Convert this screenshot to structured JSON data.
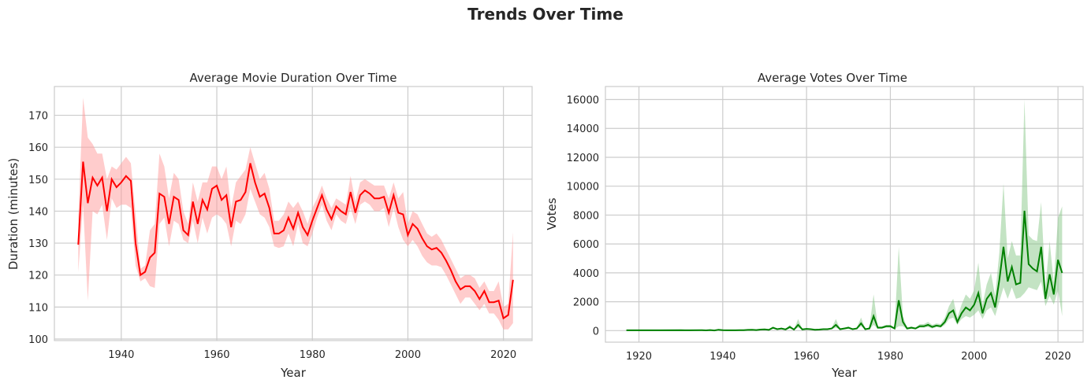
{
  "figure": {
    "title": "Trends Over Time"
  },
  "chart_data": [
    {
      "type": "line",
      "title": "Average Movie Duration Over Time",
      "xlabel": "Year",
      "ylabel": "Duration (minutes)",
      "xlim": [
        1926,
        2026
      ],
      "ylim": [
        99.5,
        179
      ],
      "xticks": [
        1940,
        1960,
        1980,
        2000,
        2020
      ],
      "yticks": [
        100,
        110,
        120,
        130,
        140,
        150,
        160,
        170
      ],
      "grid": true,
      "color": "#ff0000",
      "band_color": "#ff9999",
      "series": [
        {
          "x": [
            1931,
            1932,
            1933,
            1934,
            1935,
            1936,
            1937,
            1938,
            1939,
            1940,
            1941,
            1942,
            1943,
            1944,
            1945,
            1946,
            1947,
            1948,
            1949,
            1950,
            1951,
            1952,
            1953,
            1954,
            1955,
            1956,
            1957,
            1958,
            1959,
            1960,
            1961,
            1962,
            1963,
            1964,
            1965,
            1966,
            1967,
            1968,
            1969,
            1970,
            1971,
            1972,
            1973,
            1974,
            1975,
            1976,
            1977,
            1978,
            1979,
            1980,
            1981,
            1982,
            1983,
            1984,
            1985,
            1986,
            1987,
            1988,
            1989,
            1990,
            1991,
            1992,
            1993,
            1994,
            1995,
            1996,
            1997,
            1998,
            1999,
            2000,
            2001,
            2002,
            2003,
            2004,
            2005,
            2006,
            2007,
            2008,
            2009,
            2010,
            2011,
            2012,
            2013,
            2014,
            2015,
            2016,
            2017,
            2018,
            2019,
            2020,
            2021,
            2022
          ],
          "y": [
            129.5,
            155.5,
            142.5,
            150.5,
            148,
            150.5,
            140,
            150,
            147.5,
            149,
            151,
            149.5,
            130,
            120,
            121,
            125.5,
            127,
            145.5,
            144.5,
            136,
            144.5,
            143.5,
            134,
            132.5,
            143,
            136,
            143.5,
            140.5,
            147,
            148,
            143.5,
            145,
            135,
            143,
            143.5,
            146,
            155,
            149,
            144.5,
            145.5,
            141,
            133,
            133,
            134,
            138,
            134.5,
            139.5,
            135,
            132.5,
            137,
            141,
            145,
            140.5,
            137.5,
            141.5,
            140,
            139,
            146,
            139.5,
            145,
            146.5,
            145.5,
            144,
            144,
            144.5,
            139.5,
            145,
            139.5,
            139,
            132.5,
            136,
            134.5,
            131.5,
            129,
            128,
            128.5,
            127,
            124.5,
            121.5,
            118,
            115.5,
            116.5,
            116.5,
            115,
            112.5,
            115,
            111.5,
            111.5,
            112,
            106.5,
            107.5,
            118.5
          ],
          "lower": [
            121,
            142,
            112,
            140,
            139,
            142,
            131,
            144,
            141,
            142,
            142,
            141,
            123,
            118,
            119,
            116.5,
            116,
            136,
            138,
            129,
            137,
            136,
            131,
            130,
            137,
            130,
            138,
            133,
            138,
            139,
            138,
            136,
            129,
            137,
            136,
            139,
            147,
            143,
            139,
            138,
            135,
            129,
            128.5,
            129,
            133,
            129,
            136,
            130,
            129,
            133,
            138,
            142,
            137,
            134,
            139,
            137,
            136,
            141,
            136,
            142,
            143,
            142,
            140,
            140,
            141,
            135,
            141,
            135,
            131,
            129,
            131,
            129,
            126,
            124,
            123,
            123,
            122.5,
            120,
            117,
            114,
            111,
            113,
            113,
            111,
            109,
            111,
            108,
            108,
            106,
            103,
            103,
            105
          ],
          "upper": [
            138,
            175.5,
            163,
            161,
            158,
            158,
            150,
            154,
            153,
            155,
            157,
            155,
            139,
            122,
            123,
            134,
            136,
            158,
            154,
            144,
            152,
            150,
            140,
            136,
            149,
            143,
            149,
            149,
            154,
            154,
            150,
            154,
            141,
            149,
            151,
            153,
            160,
            155,
            150,
            152,
            147,
            137,
            137,
            139,
            143,
            141,
            143,
            140,
            136,
            141,
            144,
            148,
            144,
            141,
            144,
            143,
            142,
            151,
            143,
            149,
            150,
            149,
            148,
            148,
            148,
            144,
            149,
            144,
            146,
            136,
            140,
            139,
            136,
            133,
            132,
            133,
            131,
            128,
            125,
            122,
            119,
            120,
            120,
            119,
            116,
            118,
            115,
            115,
            118,
            110,
            111,
            133.5
          ]
        }
      ]
    },
    {
      "type": "line",
      "title": "Average Votes Over Time",
      "xlabel": "Year",
      "ylabel": "Votes",
      "xlim": [
        1912,
        2026
      ],
      "ylim": [
        -800,
        16900
      ],
      "xticks": [
        1920,
        1940,
        1960,
        1980,
        2000,
        2020
      ],
      "yticks": [
        0,
        2000,
        4000,
        6000,
        8000,
        10000,
        12000,
        14000,
        16000
      ],
      "grid": true,
      "color": "#008000",
      "band_color": "#88c888",
      "series": [
        {
          "x": [
            1917,
            1920,
            1925,
            1930,
            1931,
            1932,
            1935,
            1936,
            1937,
            1938,
            1939,
            1940,
            1941,
            1942,
            1943,
            1944,
            1945,
            1946,
            1947,
            1948,
            1949,
            1950,
            1951,
            1952,
            1953,
            1954,
            1955,
            1956,
            1957,
            1958,
            1959,
            1960,
            1961,
            1962,
            1963,
            1964,
            1965,
            1966,
            1967,
            1968,
            1969,
            1970,
            1971,
            1972,
            1973,
            1974,
            1975,
            1976,
            1977,
            1978,
            1979,
            1980,
            1981,
            1982,
            1983,
            1984,
            1985,
            1986,
            1987,
            1988,
            1989,
            1990,
            1991,
            1992,
            1993,
            1994,
            1995,
            1996,
            1997,
            1998,
            1999,
            2000,
            2001,
            2002,
            2003,
            2004,
            2005,
            2006,
            2007,
            2008,
            2009,
            2010,
            2011,
            2012,
            2013,
            2014,
            2015,
            2016,
            2017,
            2018,
            2019,
            2020,
            2021
          ],
          "y": [
            20,
            20,
            20,
            30,
            20,
            25,
            30,
            15,
            40,
            10,
            60,
            30,
            20,
            25,
            20,
            30,
            35,
            50,
            60,
            40,
            70,
            80,
            50,
            200,
            100,
            150,
            80,
            250,
            70,
            400,
            80,
            120,
            100,
            60,
            70,
            100,
            100,
            150,
            400,
            100,
            150,
            200,
            100,
            150,
            500,
            100,
            150,
            1000,
            200,
            200,
            300,
            300,
            150,
            2100,
            600,
            150,
            200,
            150,
            300,
            300,
            400,
            250,
            350,
            300,
            600,
            1200,
            1400,
            600,
            1200,
            1600,
            1400,
            1800,
            2600,
            1200,
            2200,
            2600,
            1600,
            3500,
            5800,
            3400,
            4400,
            3200,
            3300,
            8300,
            4600,
            4300,
            4100,
            5800,
            2200,
            3900,
            2500,
            4900,
            4000
          ],
          "lower": [
            20,
            20,
            20,
            30,
            20,
            25,
            30,
            15,
            40,
            10,
            60,
            30,
            20,
            25,
            20,
            30,
            35,
            50,
            60,
            40,
            70,
            60,
            40,
            120,
            80,
            100,
            60,
            150,
            60,
            200,
            60,
            100,
            80,
            50,
            60,
            80,
            80,
            100,
            200,
            80,
            100,
            150,
            80,
            100,
            300,
            80,
            100,
            400,
            150,
            150,
            200,
            200,
            100,
            300,
            300,
            100,
            150,
            100,
            200,
            200,
            250,
            150,
            250,
            200,
            400,
            800,
            900,
            400,
            800,
            1000,
            900,
            1100,
            1400,
            800,
            1400,
            1600,
            1000,
            2000,
            3000,
            2200,
            3000,
            2200,
            2300,
            2600,
            3000,
            2900,
            2800,
            3400,
            1700,
            2400,
            1800,
            2800,
            1000
          ],
          "upper": [
            20,
            20,
            20,
            30,
            20,
            25,
            30,
            15,
            40,
            10,
            60,
            30,
            20,
            25,
            20,
            30,
            35,
            50,
            60,
            40,
            70,
            100,
            60,
            280,
            120,
            200,
            100,
            400,
            80,
            800,
            100,
            160,
            120,
            80,
            90,
            120,
            130,
            200,
            800,
            120,
            200,
            300,
            130,
            200,
            900,
            130,
            200,
            2500,
            300,
            300,
            400,
            400,
            200,
            5800,
            1000,
            200,
            300,
            200,
            450,
            450,
            600,
            400,
            500,
            450,
            900,
            1700,
            2200,
            900,
            1800,
            2500,
            2200,
            2800,
            4700,
            1800,
            3200,
            4000,
            2400,
            5400,
            10200,
            5000,
            6200,
            5200,
            5200,
            16000,
            6600,
            6300,
            6200,
            8900,
            3000,
            6200,
            3300,
            7800,
            8600
          ]
        }
      ]
    }
  ]
}
